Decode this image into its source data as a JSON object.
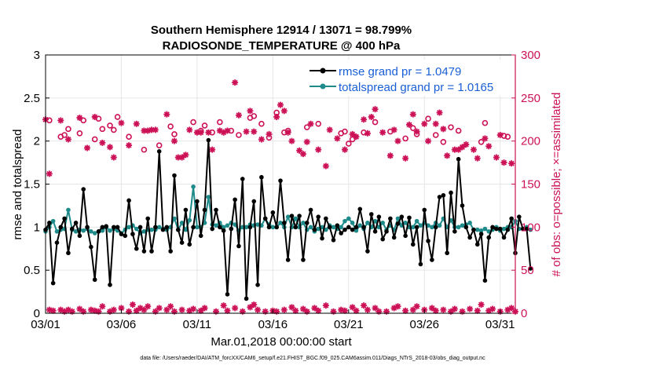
{
  "chart_data": {
    "type": "line",
    "title_line1": "Southern Hemisphere 12914 / 13071 = 98.799%",
    "title_line2": "RADIOSONDE_TEMPERATURE @ 400 hPa",
    "xlabel": "Mar.01,2018 00:00:00 start",
    "ylabel_left": "rmse and totalspread",
    "ylabel_right": "# of obs: o=possible; ×=assimilated",
    "footer": "data file: /Users/raeder/DAI/ATM_forcXX/CAM6_setup/f.e21.FHIST_BGC.f09_025.CAM6assim.011/Diags_NTrS_2018-03/obs_diag_output.nc",
    "xlim": [
      1,
      32
    ],
    "ylim_left": [
      0,
      3
    ],
    "ylim_right": [
      0,
      300
    ],
    "x_ticks": [
      1,
      6,
      11,
      16,
      21,
      26,
      31
    ],
    "x_tick_labels": [
      "03/01",
      "03/06",
      "03/11",
      "03/16",
      "03/21",
      "03/26",
      "03/31"
    ],
    "y_ticks_left": [
      0,
      0.5,
      1,
      1.5,
      2,
      2.5,
      3
    ],
    "y_tick_labels_left": [
      "0",
      "0.5",
      "1",
      "1.5",
      "2",
      "2.5",
      "3"
    ],
    "y_ticks_right": [
      0,
      50,
      100,
      150,
      200,
      250,
      300
    ],
    "y_tick_labels_right": [
      "0",
      "50",
      "100",
      "150",
      "200",
      "250",
      "300"
    ],
    "x_start": 1,
    "x_step": 0.25,
    "series": [
      {
        "name": "rmse grand pr = 1.0479",
        "color": "#000000",
        "marker": "filled-circle",
        "values": [
          0.97,
          1.05,
          0.35,
          0.82,
          1.0,
          1.1,
          0.7,
          0.98,
          1.05,
          0.9,
          1.44,
          1.0,
          0.77,
          0.39,
          0.95,
          1.0,
          1.01,
          0.33,
          1.0,
          1.0,
          0.92,
          0.9,
          1.31,
          0.92,
          0.75,
          1.0,
          0.72,
          1.1,
          0.72,
          1.0,
          1.88,
          0.97,
          1.0,
          0.72,
          1.6,
          0.97,
          0.82,
          1.2,
          0.8,
          1.0,
          1.3,
          0.9,
          1.2,
          2.01,
          0.98,
          1.2,
          1.0,
          0.96,
          0.22,
          0.98,
          1.32,
          0.78,
          1.56,
          0.17,
          1.0,
          1.3,
          0.33,
          1.58,
          1.1,
          1.0,
          1.17,
          1.0,
          1.54,
          1.05,
          0.62,
          1.13,
          1.0,
          1.13,
          0.62,
          1.05,
          1.2,
          0.97,
          1.12,
          0.87,
          1.1,
          1.0,
          0.85,
          1.02,
          0.93,
          0.97,
          1.0,
          0.97,
          1.0,
          1.21,
          1.0,
          0.72,
          1.15,
          0.95,
          1.12,
          0.86,
          0.95,
          1.1,
          0.88,
          1.04,
          1.12,
          0.9,
          1.11,
          0.8,
          1.0,
          0.57,
          1.2,
          0.84,
          0.62,
          1.0,
          1.35,
          1.37,
          0.7,
          1.4,
          0.95,
          1.79,
          1.25,
          1.0,
          0.88,
          0.97,
          0.8,
          0.92,
          0.38,
          0.88,
          1.0,
          0.98,
          0.98,
          0.88,
          0.97,
          1.1,
          0.7,
          1.12,
          0.98,
          0.98,
          0.52
        ]
      },
      {
        "name": "totalspread grand pr = 1.0165",
        "color": "#1f8a8a",
        "marker": "filled-circle",
        "values": [
          0.95,
          1.0,
          1.07,
          0.95,
          0.97,
          0.98,
          1.2,
          0.97,
          0.95,
          0.97,
          0.96,
          0.98,
          0.95,
          0.93,
          0.95,
          0.96,
          1.0,
          0.96,
          0.98,
          0.96,
          0.93,
          0.97,
          1.0,
          1.02,
          0.98,
          0.93,
          0.95,
          0.97,
          0.97,
          0.97,
          1.0,
          0.98,
          0.97,
          1.0,
          1.1,
          0.97,
          1.05,
          0.97,
          1.08,
          1.47,
          1.0,
          1.0,
          1.05,
          1.35,
          1.03,
          1.02,
          1.05,
          1.0,
          1.02,
          1.05,
          1.03,
          0.96,
          1.0,
          1.0,
          1.03,
          1.02,
          1.03,
          1.02,
          1.1,
          1.03,
          1.0,
          1.0,
          1.05,
          1.0,
          1.12,
          1.0,
          1.1,
          1.0,
          1.05,
          0.97,
          1.0,
          0.95,
          0.98,
          1.0,
          0.97,
          1.02,
          1.0,
          0.98,
          1.0,
          1.07,
          1.1,
          1.05,
          0.96,
          1.02,
          0.98,
          1.05,
          1.0,
          1.07,
          1.0,
          1.05,
          0.97,
          1.02,
          0.97,
          1.1,
          1.02,
          1.05,
          1.0,
          1.0,
          1.07,
          1.02,
          1.05,
          1.02,
          1.0,
          1.05,
          1.02,
          1.1,
          1.0,
          1.08,
          1.0,
          1.0,
          1.02,
          1.03,
          1.05,
          0.97,
          0.97,
          0.96,
          0.98,
          0.95,
          0.97,
          1.0,
          0.96,
          0.98,
          1.0,
          1.0,
          1.07,
          0.98,
          0.98,
          1.0,
          0.97
        ]
      }
    ],
    "obs_points": {
      "color": "#cc1157",
      "possible": [
        [
          1.25,
          224
        ],
        [
          2.0,
          205
        ],
        [
          2.25,
          207
        ],
        [
          2.5,
          214
        ],
        [
          3.25,
          209
        ],
        [
          3.5,
          224
        ],
        [
          4.25,
          202
        ],
        [
          4.5,
          226
        ],
        [
          4.75,
          214
        ],
        [
          5.25,
          218
        ],
        [
          5.5,
          213
        ],
        [
          5.75,
          228
        ],
        [
          6.5,
          205
        ],
        [
          7.5,
          190
        ],
        [
          8.5,
          195
        ],
        [
          9.25,
          217
        ],
        [
          9.5,
          208
        ],
        [
          10.75,
          222
        ],
        [
          11.25,
          212
        ],
        [
          11.5,
          218
        ],
        [
          12.0,
          210
        ],
        [
          12.5,
          222
        ],
        [
          13.25,
          212
        ],
        [
          13.75,
          207
        ],
        [
          14.5,
          227
        ],
        [
          14.75,
          229
        ],
        [
          15.25,
          220
        ],
        [
          15.75,
          204
        ],
        [
          16.25,
          233
        ],
        [
          16.75,
          210
        ],
        [
          17.0,
          212
        ],
        [
          18.25,
          216
        ],
        [
          19.0,
          220
        ],
        [
          20.5,
          209
        ],
        [
          20.75,
          211
        ],
        [
          21.0,
          197
        ],
        [
          21.25,
          202
        ],
        [
          22.0,
          210
        ],
        [
          22.75,
          222
        ],
        [
          23.75,
          211
        ],
        [
          24.75,
          203
        ],
        [
          25.25,
          215
        ],
        [
          25.5,
          208
        ],
        [
          26.25,
          226
        ],
        [
          26.75,
          207
        ],
        [
          27.25,
          199
        ],
        [
          27.75,
          216
        ],
        [
          28.25,
          212
        ],
        [
          29.75,
          199
        ],
        [
          30.0,
          221
        ],
        [
          31.25,
          206
        ],
        [
          31.5,
          205
        ]
      ],
      "assimilated": [
        [
          1.0,
          225
        ],
        [
          1.25,
          162
        ],
        [
          2.0,
          224
        ],
        [
          2.5,
          202
        ],
        [
          3.25,
          227
        ],
        [
          3.75,
          192
        ],
        [
          4.25,
          228
        ],
        [
          4.75,
          198
        ],
        [
          5.25,
          193
        ],
        [
          5.5,
          181
        ],
        [
          6.0,
          221
        ],
        [
          6.5,
          195
        ],
        [
          7.0,
          220
        ],
        [
          7.5,
          212
        ],
        [
          7.75,
          212
        ],
        [
          8.0,
          213
        ],
        [
          8.25,
          213
        ],
        [
          9.0,
          231
        ],
        [
          9.5,
          200
        ],
        [
          9.75,
          181
        ],
        [
          10.0,
          181
        ],
        [
          10.25,
          184
        ],
        [
          10.5,
          213
        ],
        [
          11.0,
          210
        ],
        [
          11.25,
          210
        ],
        [
          11.75,
          210
        ],
        [
          12.0,
          190
        ],
        [
          12.5,
          212
        ],
        [
          12.75,
          210
        ],
        [
          13.0,
          212
        ],
        [
          13.5,
          268
        ],
        [
          13.75,
          230
        ],
        [
          14.25,
          211
        ],
        [
          14.5,
          235
        ],
        [
          14.75,
          211
        ],
        [
          15.25,
          202
        ],
        [
          15.75,
          208
        ],
        [
          16.25,
          228
        ],
        [
          16.5,
          242
        ],
        [
          16.75,
          235
        ],
        [
          17.0,
          210
        ],
        [
          17.25,
          200
        ],
        [
          17.75,
          189
        ],
        [
          18.0,
          185
        ],
        [
          18.25,
          199
        ],
        [
          18.5,
          220
        ],
        [
          19.0,
          190
        ],
        [
          19.5,
          171
        ],
        [
          19.75,
          213
        ],
        [
          20.25,
          203
        ],
        [
          20.75,
          190
        ],
        [
          21.25,
          208
        ],
        [
          21.5,
          205
        ],
        [
          22.0,
          225
        ],
        [
          22.25,
          209
        ],
        [
          22.5,
          228
        ],
        [
          22.75,
          237
        ],
        [
          23.25,
          210
        ],
        [
          23.75,
          183
        ],
        [
          24.0,
          213
        ],
        [
          24.25,
          200
        ],
        [
          24.75,
          180
        ],
        [
          25.0,
          219
        ],
        [
          25.25,
          231
        ],
        [
          25.5,
          211
        ],
        [
          26.0,
          220
        ],
        [
          26.25,
          200
        ],
        [
          26.75,
          220
        ],
        [
          27.0,
          233
        ],
        [
          27.25,
          214
        ],
        [
          27.5,
          183
        ],
        [
          28.0,
          190
        ],
        [
          28.25,
          190
        ],
        [
          28.5,
          193
        ],
        [
          28.75,
          196
        ],
        [
          29.25,
          190
        ],
        [
          29.5,
          180
        ],
        [
          30.0,
          203
        ],
        [
          30.25,
          194
        ],
        [
          30.75,
          181
        ],
        [
          31.0,
          207
        ],
        [
          31.25,
          175
        ],
        [
          31.75,
          174
        ]
      ],
      "low": [
        [
          1.25,
          4
        ],
        [
          1.5,
          3
        ],
        [
          2.0,
          4
        ],
        [
          2.25,
          2
        ],
        [
          2.5,
          4
        ],
        [
          2.75,
          2
        ],
        [
          3.25,
          5
        ],
        [
          3.5,
          2
        ],
        [
          4.0,
          4
        ],
        [
          4.25,
          3
        ],
        [
          4.5,
          2
        ],
        [
          4.75,
          8
        ],
        [
          5.25,
          2
        ],
        [
          5.5,
          4
        ],
        [
          6.0,
          6
        ],
        [
          6.5,
          2
        ],
        [
          6.75,
          10
        ],
        [
          7.0,
          3
        ],
        [
          7.25,
          6
        ],
        [
          7.5,
          4
        ],
        [
          7.75,
          8
        ],
        [
          8.25,
          2
        ],
        [
          8.5,
          6
        ],
        [
          9.0,
          4
        ],
        [
          9.25,
          8
        ],
        [
          9.5,
          2
        ],
        [
          10.0,
          4
        ],
        [
          10.5,
          3
        ],
        [
          10.75,
          5
        ],
        [
          11.25,
          3
        ],
        [
          11.5,
          6
        ],
        [
          12.25,
          2
        ],
        [
          12.75,
          9
        ],
        [
          13.0,
          3
        ],
        [
          13.5,
          6
        ],
        [
          14.0,
          2
        ],
        [
          14.5,
          7
        ],
        [
          14.75,
          10
        ],
        [
          15.0,
          4
        ],
        [
          15.5,
          2
        ],
        [
          16.0,
          3
        ],
        [
          16.25,
          2
        ],
        [
          16.75,
          4
        ],
        [
          17.25,
          7
        ],
        [
          17.5,
          3
        ],
        [
          18.0,
          5
        ],
        [
          18.25,
          2
        ],
        [
          18.75,
          6
        ],
        [
          19.0,
          3
        ],
        [
          19.5,
          9
        ],
        [
          20.0,
          2
        ],
        [
          20.5,
          4
        ],
        [
          20.75,
          3
        ],
        [
          21.25,
          7
        ],
        [
          21.5,
          3
        ],
        [
          22.0,
          9
        ],
        [
          22.25,
          4
        ],
        [
          22.75,
          6
        ],
        [
          23.0,
          2
        ],
        [
          23.5,
          2
        ],
        [
          24.0,
          6
        ],
        [
          24.25,
          8
        ],
        [
          24.75,
          3
        ],
        [
          25.25,
          4
        ],
        [
          25.5,
          8
        ],
        [
          26.0,
          4
        ],
        [
          26.5,
          6
        ],
        [
          26.75,
          3
        ],
        [
          27.25,
          4
        ],
        [
          27.75,
          2
        ],
        [
          28.0,
          5
        ],
        [
          28.5,
          2
        ],
        [
          29.0,
          5
        ],
        [
          29.5,
          3
        ],
        [
          29.75,
          10
        ],
        [
          30.25,
          3
        ],
        [
          30.5,
          5
        ],
        [
          31.0,
          2
        ],
        [
          31.5,
          4
        ],
        [
          31.75,
          6
        ],
        [
          32.0,
          2
        ]
      ]
    }
  }
}
